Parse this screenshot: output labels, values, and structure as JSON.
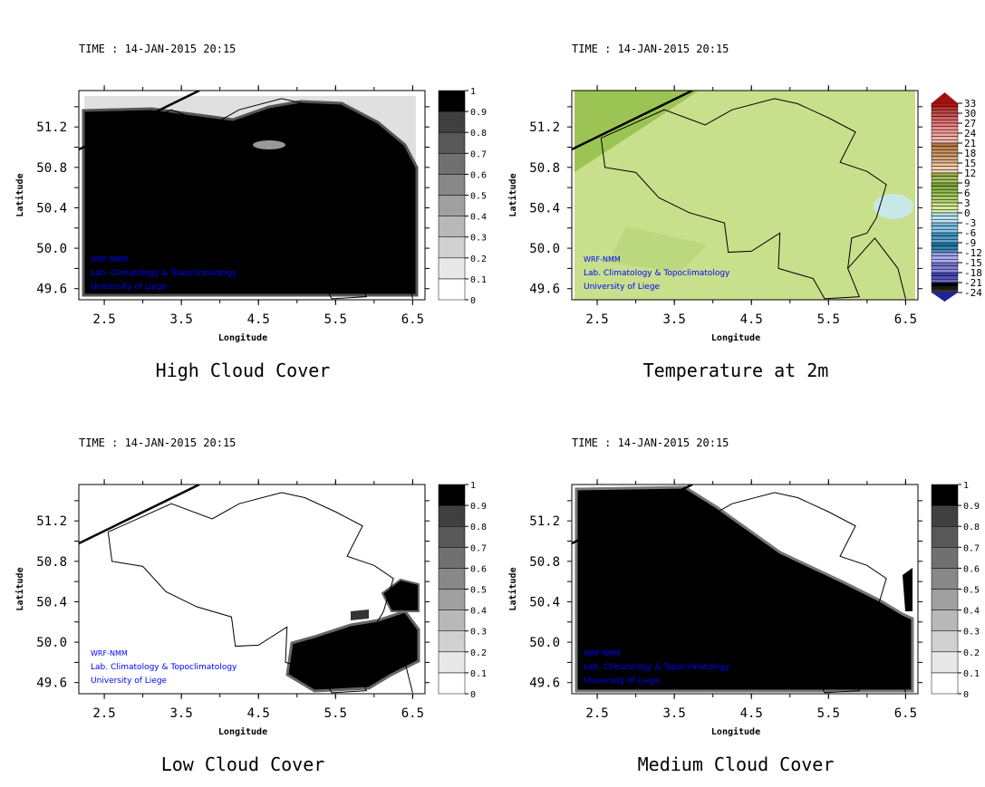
{
  "chart_data": [
    {
      "type": "heatmap",
      "title": "High Cloud Cover",
      "time_label": "TIME : 14-JAN-2015 20:15",
      "xlabel": "Longitude",
      "ylabel": "Latitude",
      "xticks": [
        "2.5",
        "3.5",
        "4.5",
        "5.5",
        "6.5"
      ],
      "yticks": [
        "49.6",
        "50.0",
        "50.4",
        "50.8",
        "51.2"
      ],
      "xlim": [
        2.17,
        6.66
      ],
      "ylim": [
        49.49,
        51.56
      ],
      "colorbar": [
        "0",
        "0.1",
        "0.2",
        "0.3",
        "0.4",
        "0.5",
        "0.6",
        "0.7",
        "0.8",
        "0.9",
        "1"
      ],
      "colormap": "grayscale",
      "field": "mostly overcast (~1) except clear northern coastal strip"
    },
    {
      "type": "heatmap",
      "title": "Temperature at 2m",
      "time_label": "TIME : 14-JAN-2015 20:15",
      "xlabel": "Longitude",
      "ylabel": "Latitude",
      "xticks": [
        "2.5",
        "3.5",
        "4.5",
        "5.5",
        "6.5"
      ],
      "yticks": [
        "49.6",
        "50.0",
        "50.4",
        "50.8",
        "51.2"
      ],
      "xlim": [
        2.17,
        6.66
      ],
      "ylim": [
        49.49,
        51.56
      ],
      "colorbar": [
        "33",
        "30",
        "27",
        "24",
        "21",
        "18",
        "15",
        "12",
        "9",
        "6",
        "3",
        "0",
        "-3",
        "-6",
        "-9",
        "-12",
        "-15",
        "-18",
        "-21",
        "-24"
      ],
      "colormap": "rainbow (red warm to blue cold)",
      "field": "mostly 3 to 9 across domain, ~0 near 6.2E 50.4N"
    },
    {
      "type": "heatmap",
      "title": "Low Cloud Cover",
      "time_label": "TIME : 14-JAN-2015 20:15",
      "xlabel": "Longitude",
      "ylabel": "Latitude",
      "xticks": [
        "2.5",
        "3.5",
        "4.5",
        "5.5",
        "6.5"
      ],
      "yticks": [
        "49.6",
        "50.0",
        "50.4",
        "50.8",
        "51.2"
      ],
      "xlim": [
        2.17,
        6.66
      ],
      "ylim": [
        49.49,
        51.56
      ],
      "colorbar": [
        "0",
        "0.1",
        "0.2",
        "0.3",
        "0.4",
        "0.5",
        "0.6",
        "0.7",
        "0.8",
        "0.9",
        "1"
      ],
      "colormap": "grayscale",
      "field": "mostly clear, overcast patches in southeast"
    },
    {
      "type": "heatmap",
      "title": "Medium Cloud Cover",
      "time_label": "TIME : 14-JAN-2015 20:15",
      "xlabel": "Longitude",
      "ylabel": "Latitude",
      "xticks": [
        "2.5",
        "3.5",
        "4.5",
        "5.5",
        "6.5"
      ],
      "yticks": [
        "49.6",
        "50.0",
        "50.4",
        "50.8",
        "51.2"
      ],
      "xlim": [
        2.17,
        6.66
      ],
      "ylim": [
        49.49,
        51.56
      ],
      "colorbar": [
        "0",
        "0.1",
        "0.2",
        "0.3",
        "0.4",
        "0.5",
        "0.6",
        "0.7",
        "0.8",
        "0.9",
        "1"
      ],
      "colormap": "grayscale",
      "field": "overcast southwest of diagonal, clear northeast"
    }
  ],
  "credits": [
    "WRF-NMM",
    "Lab. Climatology & Topoclimatology",
    "University of Liege"
  ],
  "colors": {
    "credit": "#0000ff",
    "temp_base": "#c8e08c",
    "temp_dark": "#9cc455",
    "temp_cold": "#c8e8e8"
  }
}
